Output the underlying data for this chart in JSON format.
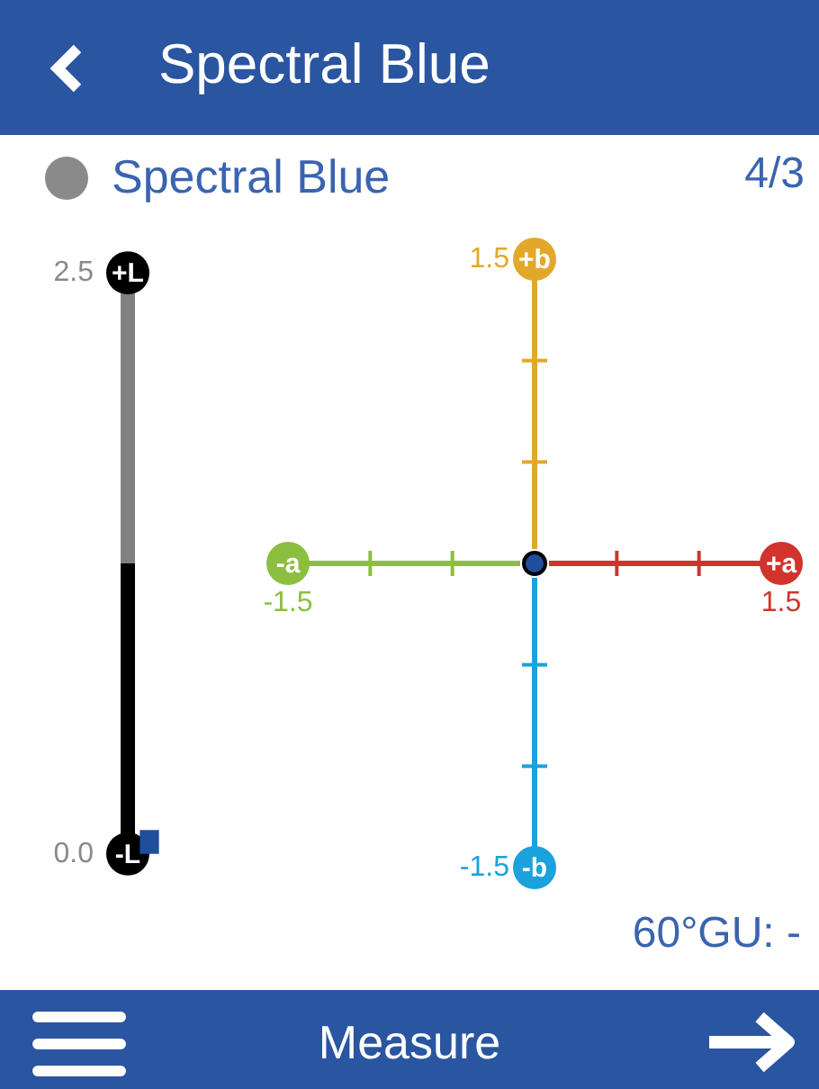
{
  "chart_data": [
    {
      "type": "bar",
      "categories": [
        null
      ],
      "values": [
        0.1
      ],
      "color": "#1f4e9c",
      "ylim": [
        0,
        2.5
      ],
      "yticks": [
        {
          "value": 0,
          "label": "0.0"
        },
        2.5
      ],
      "tick_labels": "y",
      "annotations": [
        {
          "text": "+L",
          "y": 2.5
        },
        {
          "text": "-L",
          "y": 0
        }
      ]
    },
    {
      "type": "scatter",
      "title": "Spectral Blue",
      "subtitle": "Spectral Blue",
      "x": [
        0
      ],
      "values": [
        0
      ],
      "color": "#1f4e9c",
      "marker": "circle",
      "xlim": [
        -1.5,
        1.5
      ],
      "ylim": [
        -1.5,
        1.5
      ],
      "xticks": [
        -1.5,
        {
          "value": -1,
          "label": null
        },
        {
          "value": -0.5,
          "label": null
        },
        {
          "value": 0.5,
          "label": null
        },
        {
          "value": 1,
          "label": null
        },
        1.5
      ],
      "yticks": [
        -1.5,
        {
          "value": -1,
          "label": null
        },
        {
          "value": -0.5,
          "label": null
        },
        {
          "value": 0.5,
          "label": null
        },
        {
          "value": 1,
          "label": null
        },
        1.5
      ],
      "annotations": [
        {
          "text": "-a",
          "x": -1.5,
          "y": 0
        },
        {
          "text": "+a",
          "x": 1.5,
          "y": 0
        },
        {
          "text": "+b",
          "x": 0,
          "y": 1.5
        },
        {
          "text": "-b",
          "x": 0,
          "y": -1.5
        },
        "4/3",
        "60°GU: -",
        "Measure"
      ]
    }
  ]
}
